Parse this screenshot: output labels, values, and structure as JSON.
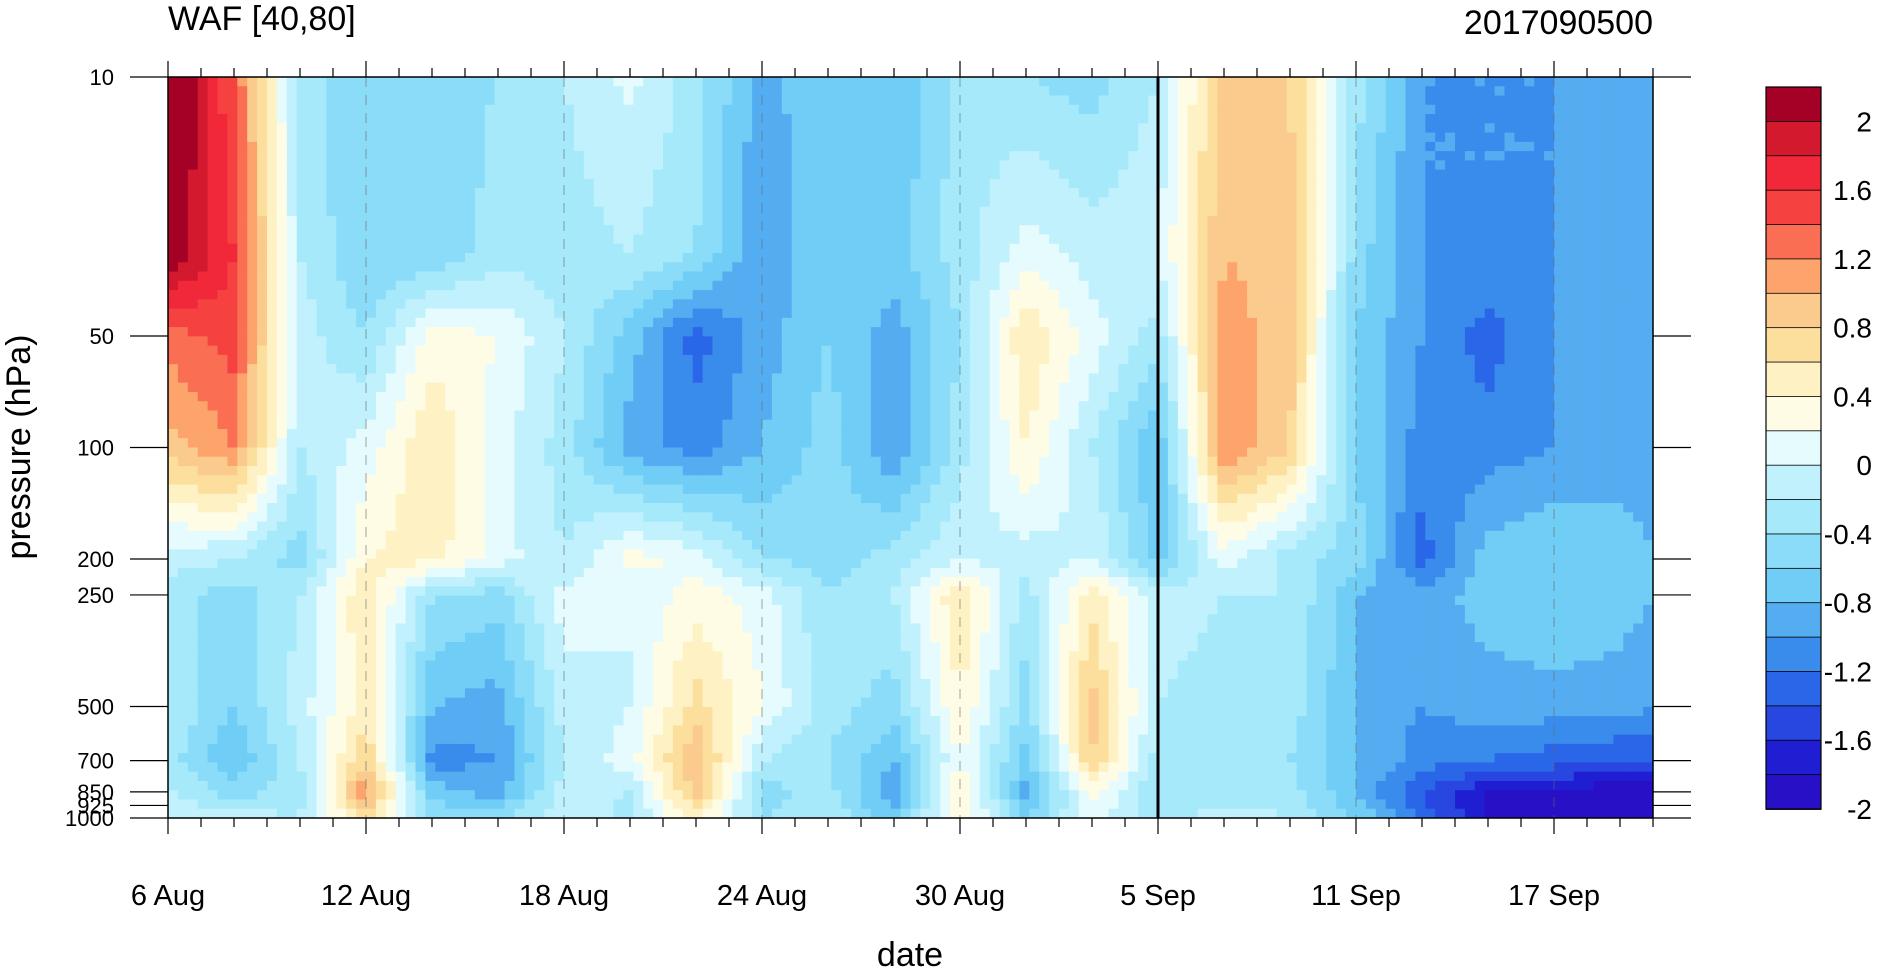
{
  "chart_data": {
    "type": "heatmap",
    "title": "WAF [40,80]",
    "subtitle": "2017090500",
    "xlabel": "date",
    "ylabel": "pressure (hPa)",
    "x_tick_labels": [
      "6 Aug",
      "12 Aug",
      "18 Aug",
      "24 Aug",
      "30 Aug",
      "5 Sep",
      "11 Sep",
      "17 Sep"
    ],
    "x_tick_days": [
      0,
      6,
      12,
      18,
      24,
      30,
      36,
      42
    ],
    "x_range_days": [
      0,
      45
    ],
    "y_scale": "log",
    "y_range": [
      1000,
      10
    ],
    "y_tick_labels": [
      "10",
      "50",
      "100",
      "200",
      "250",
      "500",
      "700",
      "850",
      "925",
      "1000"
    ],
    "y_tick_values": [
      10,
      50,
      100,
      200,
      250,
      500,
      700,
      850,
      925,
      1000
    ],
    "colorbar_labels": [
      "2",
      "1.6",
      "1.2",
      "0.8",
      "0.4",
      "0",
      "-0.4",
      "-0.8",
      "-1.2",
      "-1.6",
      "-2"
    ],
    "colorbar_levels": [
      2.2,
      2.0,
      1.8,
      1.6,
      1.4,
      1.2,
      1.0,
      0.8,
      0.6,
      0.4,
      0.2,
      0.0,
      -0.2,
      -0.4,
      -0.6,
      -0.8,
      -1.0,
      -1.2,
      -1.4,
      -1.6,
      -1.8,
      -2.0,
      -2.2
    ],
    "colors": [
      "#a50026",
      "#d2192e",
      "#f0283a",
      "#f5413f",
      "#fa6e54",
      "#fca46c",
      "#fbcb8e",
      "#fcdf9c",
      "#fef2c4",
      "#fffce6",
      "#e6fbfd",
      "#c0f1fc",
      "#a6e9fb",
      "#8bdcf8",
      "#70cdf6",
      "#55adf1",
      "#3a8cec",
      "#2a66e8",
      "#2846e0",
      "#1f1ed2",
      "#2710c6"
    ],
    "marker_day": 30,
    "pressure_levels": [
      10,
      30,
      50,
      100,
      200,
      250,
      500,
      700,
      850,
      1000
    ],
    "days": [
      0,
      2,
      4,
      6,
      8,
      10,
      12,
      14,
      16,
      18,
      20,
      22,
      24,
      26,
      28,
      30,
      32,
      34,
      36,
      38,
      40,
      42,
      44,
      45
    ],
    "values": [
      [
        2.4,
        1.4,
        -0.3,
        -0.6,
        -0.5,
        -0.4,
        -0.2,
        0.05,
        -0.3,
        -0.9,
        -0.6,
        -0.8,
        -0.3,
        -0.4,
        -0.5,
        -0.2,
        0.9,
        0.8,
        -0.3,
        -1.0,
        -1.0,
        -1.0,
        -1.0,
        -1.0
      ],
      [
        2.2,
        1.6,
        -0.2,
        -0.6,
        -0.6,
        -0.3,
        -0.3,
        -0.2,
        -0.4,
        -1.0,
        -0.6,
        -0.7,
        -0.3,
        0.1,
        -0.1,
        0.0,
        1.0,
        0.9,
        -0.5,
        -1.0,
        -1.0,
        -1.0,
        -0.9,
        -0.9
      ],
      [
        1.3,
        1.5,
        -0.1,
        -0.4,
        0.3,
        0.2,
        -0.2,
        -0.7,
        -1.3,
        -0.9,
        -0.6,
        -0.9,
        -0.4,
        0.6,
        0.1,
        -0.3,
        1.1,
        0.9,
        -0.6,
        -1.0,
        -1.3,
        -1.0,
        -0.9,
        -0.9
      ],
      [
        0.9,
        1.2,
        -0.2,
        0.1,
        0.6,
        0.1,
        -0.3,
        -0.9,
        -1.1,
        -0.8,
        -0.5,
        -1.0,
        -0.3,
        0.4,
        -0.2,
        -0.8,
        1.2,
        0.8,
        -0.6,
        -1.1,
        -1.1,
        -1.0,
        -0.9,
        -0.9
      ],
      [
        -0.1,
        -0.2,
        -0.5,
        0.4,
        0.5,
        0.1,
        -0.2,
        0.3,
        0.1,
        -0.4,
        -0.5,
        -0.3,
        0.0,
        -0.1,
        0.0,
        -0.7,
        0.1,
        -0.3,
        -0.5,
        -1.3,
        -0.7,
        -0.6,
        -0.7,
        -0.8
      ],
      [
        -0.3,
        -0.5,
        -0.2,
        0.6,
        -0.4,
        -0.5,
        0.1,
        0.0,
        0.3,
        0.1,
        -0.4,
        -0.2,
        0.6,
        -0.3,
        0.5,
        -0.1,
        -0.2,
        -0.2,
        -0.8,
        -0.9,
        -0.7,
        -0.6,
        -0.7,
        -0.8
      ],
      [
        -0.2,
        -0.6,
        -0.1,
        0.5,
        -0.8,
        -0.9,
        -0.1,
        0.0,
        0.7,
        0.2,
        -0.3,
        -0.5,
        0.4,
        -0.5,
        0.9,
        -0.2,
        -0.3,
        -0.3,
        -0.8,
        -1.0,
        -0.9,
        -0.9,
        -0.9,
        -1.0
      ],
      [
        -0.3,
        -0.8,
        -0.2,
        0.8,
        -1.1,
        -1.0,
        -0.2,
        0.1,
        1.0,
        -0.2,
        -0.4,
        -0.8,
        0.2,
        -0.7,
        0.8,
        -0.3,
        -0.3,
        -0.4,
        -0.8,
        -1.1,
        -1.2,
        -1.3,
        -1.4,
        -1.4
      ],
      [
        -0.2,
        -0.5,
        -0.3,
        1.2,
        -0.7,
        -0.9,
        -0.1,
        -0.2,
        0.9,
        -0.5,
        -0.3,
        -1.0,
        0.5,
        -0.9,
        0.3,
        -0.4,
        -0.3,
        -0.3,
        -0.8,
        -1.4,
        -1.8,
        -1.8,
        -2.0,
        -2.0
      ],
      [
        0.0,
        -0.1,
        -0.2,
        0.6,
        -0.4,
        -0.5,
        0.0,
        -0.3,
        0.5,
        -0.4,
        -0.2,
        -0.7,
        0.4,
        -0.6,
        0.1,
        -0.3,
        -0.1,
        -0.2,
        -0.6,
        -1.3,
        -1.8,
        -2.0,
        -2.1,
        -2.1
      ]
    ]
  }
}
